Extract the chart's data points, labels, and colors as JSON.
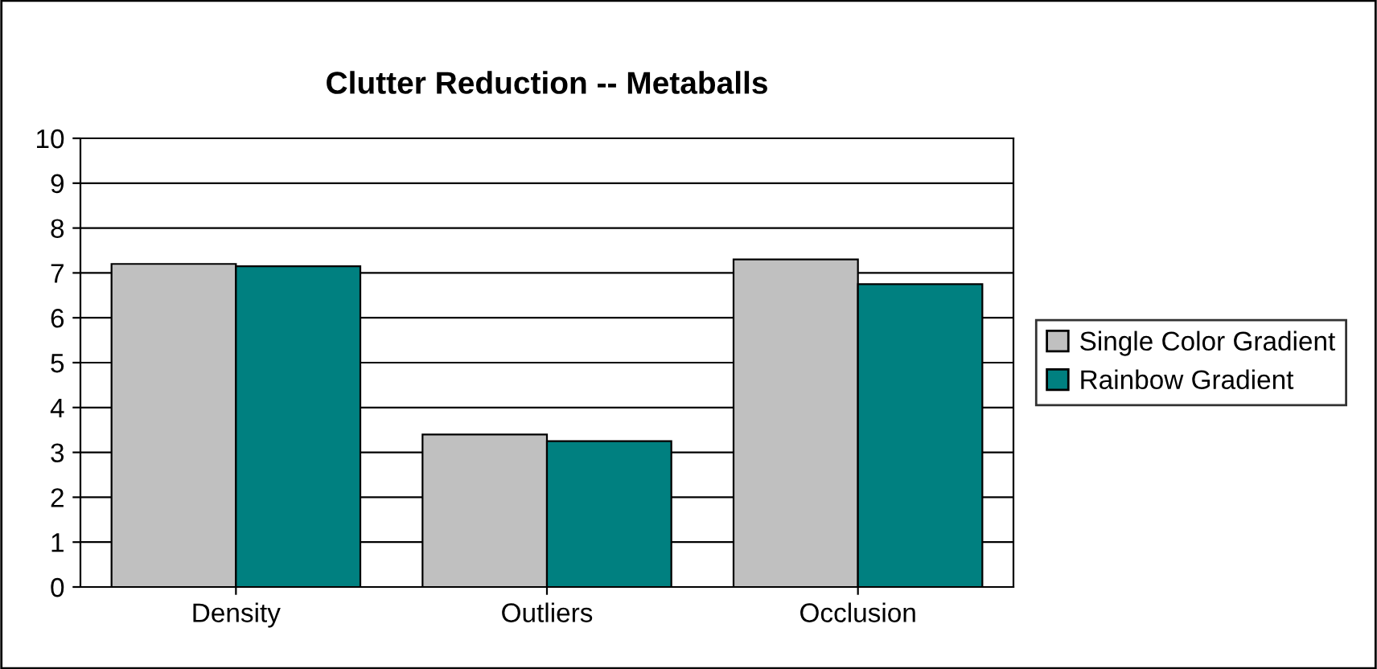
{
  "chart_data": {
    "type": "bar",
    "title": "Clutter Reduction -- Metaballs",
    "categories": [
      "Density",
      "Outliers",
      "Occlusion"
    ],
    "series": [
      {
        "name": "Single Color Gradient",
        "color": "#c0c0c0",
        "values": [
          7.2,
          3.4,
          7.3
        ]
      },
      {
        "name": "Rainbow Gradient",
        "color": "#008080",
        "values": [
          7.15,
          3.25,
          6.75
        ]
      }
    ],
    "ylim": [
      0,
      10
    ],
    "yticks": [
      0,
      1,
      2,
      3,
      4,
      5,
      6,
      7,
      8,
      9,
      10
    ],
    "grid": "y",
    "legend": "right"
  }
}
